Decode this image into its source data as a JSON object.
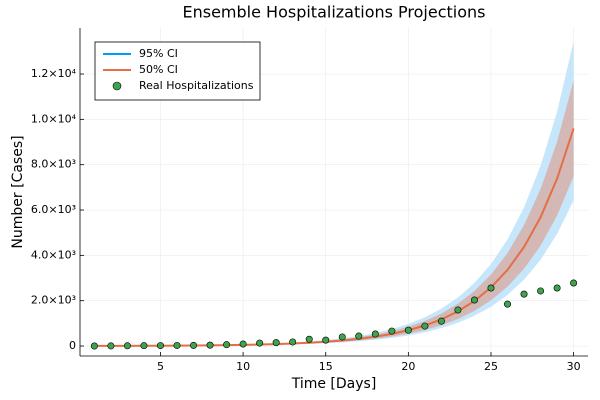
{
  "chart_data": {
    "type": "line",
    "title": "Ensemble Hospitalizations Projections",
    "xlabel": "Time [Days]",
    "ylabel": "Number [Cases]",
    "x": [
      1,
      2,
      3,
      4,
      5,
      6,
      7,
      8,
      9,
      10,
      11,
      12,
      13,
      14,
      15,
      16,
      17,
      18,
      19,
      20,
      21,
      22,
      23,
      24,
      25,
      26,
      27,
      28,
      29,
      30
    ],
    "series": [
      {
        "name": "95% CI",
        "color": "#009af9",
        "fill": "#c6e6fb",
        "upper": [
          7,
          8,
          11,
          15,
          20,
          25,
          32,
          42,
          55,
          71,
          92,
          119,
          155,
          202,
          263,
          342,
          444,
          577,
          750,
          974,
          1267,
          1648,
          2142,
          2785,
          3620,
          4705,
          6118,
          7952,
          10339,
          13440
        ],
        "lower": [
          3,
          4,
          5,
          7,
          9,
          12,
          15,
          20,
          26,
          34,
          44,
          57,
          74,
          96,
          126,
          163,
          212,
          276,
          359,
          466,
          606,
          789,
          1025,
          1333,
          1733,
          2252,
          2928,
          3806,
          4948,
          6432
        ]
      },
      {
        "name": "50% CI",
        "color": "#e26f46",
        "fill": "#d3b8b6",
        "upper": [
          6,
          7,
          10,
          13,
          17,
          22,
          28,
          37,
          48,
          62,
          81,
          104,
          135,
          176,
          229,
          298,
          387,
          503,
          654,
          849,
          1104,
          1436,
          1867,
          2427,
          3155,
          4100,
          5331,
          6930,
          9010,
          11712
        ],
        "lower": [
          4,
          5,
          6,
          9,
          11,
          14,
          18,
          23,
          30,
          40,
          51,
          66,
          87,
          112,
          147,
          190,
          247,
          321,
          418,
          543,
          706,
          918,
          1193,
          1551,
          2017,
          2622,
          3409,
          4430,
          5760,
          7488
        ],
        "values": [
          5,
          6,
          8,
          11,
          14,
          18,
          23,
          30,
          39,
          51,
          66,
          85,
          111,
          144,
          188,
          244,
          317,
          412,
          536,
          696,
          905,
          1177,
          1530,
          1989,
          2586,
          3361,
          4370,
          5680,
          7385,
          9600
        ]
      },
      {
        "name": "Real Hospitalizations",
        "color": "#3da44d",
        "marker": "circle",
        "values": [
          0,
          5,
          10,
          15,
          20,
          25,
          30,
          40,
          60,
          90,
          130,
          150,
          180,
          300,
          260,
          400,
          440,
          530,
          660,
          700,
          880,
          1100,
          1590,
          2030,
          2560,
          1850,
          2290,
          2430,
          2560,
          2780
        ]
      }
    ],
    "xlim": [
      0.13,
      30.87
    ],
    "xticks": [
      5,
      10,
      15,
      20,
      25,
      30
    ],
    "ylim": [
      -440,
      14030
    ],
    "yticks": [
      0,
      {
        "value": 2000,
        "label": "2.0×10³"
      },
      {
        "value": 4000,
        "label": "4.0×10³"
      },
      {
        "value": 6000,
        "label": "6.0×10³"
      },
      {
        "value": 8000,
        "label": "8.0×10³"
      },
      {
        "value": 10000,
        "label": "1.0×10⁴"
      },
      {
        "value": 12000,
        "label": "1.2×10⁴"
      }
    ],
    "grid": true,
    "legend": "top-left"
  }
}
